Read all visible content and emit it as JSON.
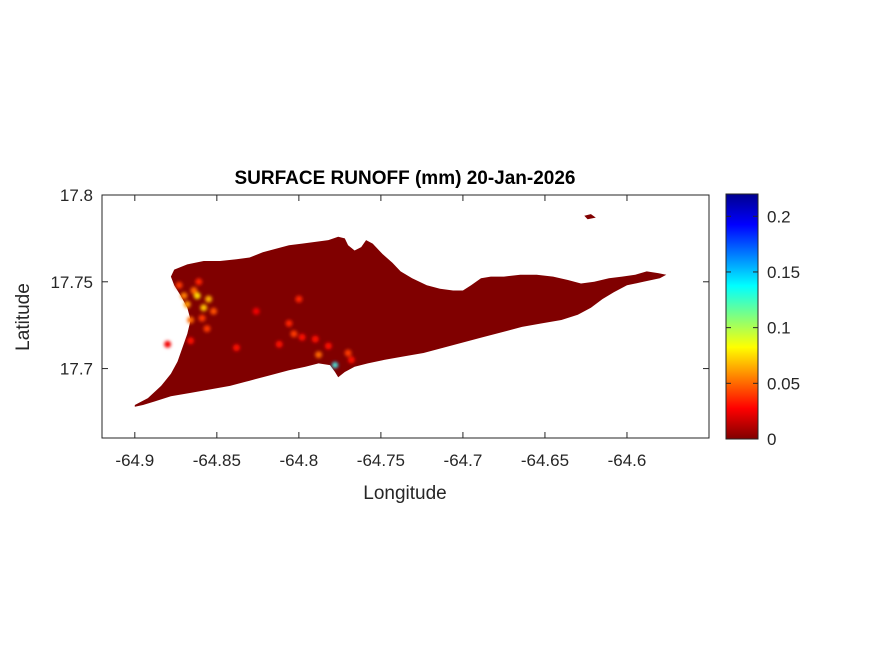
{
  "chart_data": {
    "type": "heatmap",
    "title": "SURFACE RUNOFF (mm) 20-Jan-2026",
    "xlabel": "Longitude",
    "ylabel": "Latitude",
    "xlim": [
      -64.92,
      -64.55
    ],
    "ylim": [
      17.66,
      17.8
    ],
    "x_ticks": [
      {
        "value": -64.9,
        "label": "-64.9"
      },
      {
        "value": -64.85,
        "label": "-64.85"
      },
      {
        "value": -64.8,
        "label": "-64.8"
      },
      {
        "value": -64.75,
        "label": "-64.75"
      },
      {
        "value": -64.7,
        "label": "-64.7"
      },
      {
        "value": -64.65,
        "label": "-64.65"
      },
      {
        "value": -64.6,
        "label": "-64.6"
      }
    ],
    "y_ticks": [
      {
        "value": 17.8,
        "label": "17.8"
      },
      {
        "value": 17.75,
        "label": "17.75"
      },
      {
        "value": 17.7,
        "label": "17.7"
      }
    ],
    "colorbar": {
      "colormap": "jet",
      "range": [
        0,
        0.22
      ],
      "ticks": [
        {
          "value": 0,
          "label": "0"
        },
        {
          "value": 0.05,
          "label": "0.05"
        },
        {
          "value": 0.1,
          "label": "0.1"
        },
        {
          "value": 0.15,
          "label": "0.15"
        },
        {
          "value": 0.2,
          "label": "0.2"
        }
      ]
    },
    "background_value": 0,
    "island_outline": [
      [
        -64.9,
        17.679
      ],
      [
        -64.892,
        17.683
      ],
      [
        -64.884,
        17.69
      ],
      [
        -64.878,
        17.697
      ],
      [
        -64.874,
        17.704
      ],
      [
        -64.871,
        17.712
      ],
      [
        -64.868,
        17.72
      ],
      [
        -64.866,
        17.728
      ],
      [
        -64.868,
        17.735
      ],
      [
        -64.872,
        17.742
      ],
      [
        -64.876,
        17.748
      ],
      [
        -64.878,
        17.753
      ],
      [
        -64.876,
        17.757
      ],
      [
        -64.868,
        17.76
      ],
      [
        -64.858,
        17.762
      ],
      [
        -64.848,
        17.762
      ],
      [
        -64.838,
        17.763
      ],
      [
        -64.83,
        17.764
      ],
      [
        -64.822,
        17.767
      ],
      [
        -64.814,
        17.769
      ],
      [
        -64.806,
        17.771
      ],
      [
        -64.798,
        17.772
      ],
      [
        -64.79,
        17.773
      ],
      [
        -64.782,
        17.774
      ],
      [
        -64.776,
        17.776
      ],
      [
        -64.772,
        17.775
      ],
      [
        -64.77,
        17.771
      ],
      [
        -64.766,
        17.768
      ],
      [
        -64.762,
        17.77
      ],
      [
        -64.759,
        17.774
      ],
      [
        -64.755,
        17.772
      ],
      [
        -64.749,
        17.766
      ],
      [
        -64.743,
        17.761
      ],
      [
        -64.738,
        17.756
      ],
      [
        -64.731,
        17.752
      ],
      [
        -64.722,
        17.748
      ],
      [
        -64.714,
        17.746
      ],
      [
        -64.706,
        17.745
      ],
      [
        -64.7,
        17.745
      ],
      [
        -64.695,
        17.748
      ],
      [
        -64.689,
        17.752
      ],
      [
        -64.683,
        17.753
      ],
      [
        -64.675,
        17.753
      ],
      [
        -64.665,
        17.754
      ],
      [
        -64.655,
        17.754
      ],
      [
        -64.645,
        17.753
      ],
      [
        -64.636,
        17.751
      ],
      [
        -64.628,
        17.749
      ],
      [
        -64.62,
        17.75
      ],
      [
        -64.611,
        17.752
      ],
      [
        -64.603,
        17.753
      ],
      [
        -64.595,
        17.754
      ],
      [
        -64.588,
        17.756
      ],
      [
        -64.581,
        17.755
      ],
      [
        -64.576,
        17.754
      ],
      [
        -64.58,
        17.752
      ],
      [
        -64.59,
        17.75
      ],
      [
        -64.6,
        17.748
      ],
      [
        -64.608,
        17.744
      ],
      [
        -64.615,
        17.74
      ],
      [
        -64.622,
        17.735
      ],
      [
        -64.63,
        17.731
      ],
      [
        -64.64,
        17.728
      ],
      [
        -64.652,
        17.726
      ],
      [
        -64.664,
        17.724
      ],
      [
        -64.676,
        17.721
      ],
      [
        -64.688,
        17.718
      ],
      [
        -64.7,
        17.715
      ],
      [
        -64.712,
        17.712
      ],
      [
        -64.724,
        17.709
      ],
      [
        -64.736,
        17.707
      ],
      [
        -64.748,
        17.705
      ],
      [
        -64.758,
        17.703
      ],
      [
        -64.766,
        17.701
      ],
      [
        -64.772,
        17.698
      ],
      [
        -64.776,
        17.695
      ],
      [
        -64.778,
        17.698
      ],
      [
        -64.781,
        17.702
      ],
      [
        -64.788,
        17.703
      ],
      [
        -64.796,
        17.701
      ],
      [
        -64.806,
        17.699
      ],
      [
        -64.818,
        17.696
      ],
      [
        -64.83,
        17.693
      ],
      [
        -64.842,
        17.69
      ],
      [
        -64.854,
        17.688
      ],
      [
        -64.866,
        17.686
      ],
      [
        -64.878,
        17.684
      ],
      [
        -64.888,
        17.681
      ],
      [
        -64.895,
        17.679
      ],
      [
        -64.9,
        17.678
      ]
    ],
    "islets": [
      [
        [
          -64.626,
          17.788
        ],
        [
          -64.622,
          17.789
        ],
        [
          -64.619,
          17.787
        ],
        [
          -64.624,
          17.786
        ]
      ]
    ],
    "hotspots": [
      {
        "lon": -64.868,
        "lat": 17.737,
        "value": 0.06
      },
      {
        "lon": -64.862,
        "lat": 17.742,
        "value": 0.075
      },
      {
        "lon": -64.858,
        "lat": 17.735,
        "value": 0.07
      },
      {
        "lon": -64.864,
        "lat": 17.745,
        "value": 0.05
      },
      {
        "lon": -64.855,
        "lat": 17.74,
        "value": 0.065
      },
      {
        "lon": -64.866,
        "lat": 17.728,
        "value": 0.05
      },
      {
        "lon": -64.87,
        "lat": 17.742,
        "value": 0.055
      },
      {
        "lon": -64.859,
        "lat": 17.729,
        "value": 0.04
      },
      {
        "lon": -64.852,
        "lat": 17.733,
        "value": 0.045
      },
      {
        "lon": -64.873,
        "lat": 17.748,
        "value": 0.04
      },
      {
        "lon": -64.861,
        "lat": 17.75,
        "value": 0.035
      },
      {
        "lon": -64.856,
        "lat": 17.723,
        "value": 0.04
      },
      {
        "lon": -64.866,
        "lat": 17.716,
        "value": 0.03
      },
      {
        "lon": -64.8,
        "lat": 17.74,
        "value": 0.035
      },
      {
        "lon": -64.806,
        "lat": 17.726,
        "value": 0.035
      },
      {
        "lon": -64.803,
        "lat": 17.72,
        "value": 0.04
      },
      {
        "lon": -64.798,
        "lat": 17.718,
        "value": 0.03
      },
      {
        "lon": -64.79,
        "lat": 17.717,
        "value": 0.03
      },
      {
        "lon": -64.812,
        "lat": 17.714,
        "value": 0.03
      },
      {
        "lon": -64.788,
        "lat": 17.708,
        "value": 0.05
      },
      {
        "lon": -64.782,
        "lat": 17.713,
        "value": 0.03
      },
      {
        "lon": -64.77,
        "lat": 17.709,
        "value": 0.04
      },
      {
        "lon": -64.768,
        "lat": 17.705,
        "value": 0.03
      },
      {
        "lon": -64.838,
        "lat": 17.712,
        "value": 0.03
      },
      {
        "lon": -64.826,
        "lat": 17.733,
        "value": 0.025
      },
      {
        "lon": -64.88,
        "lat": 17.714,
        "value": 0.025
      },
      {
        "lon": -64.778,
        "lat": 17.702,
        "value": 0.15
      }
    ]
  }
}
